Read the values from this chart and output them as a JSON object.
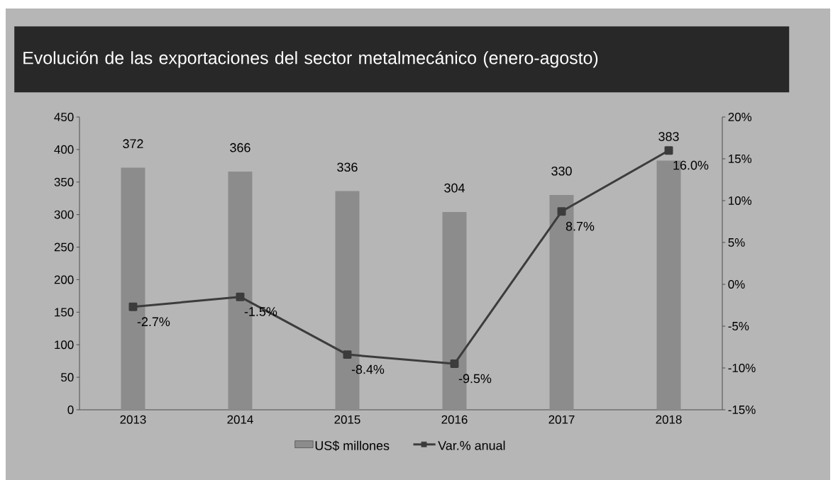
{
  "chart_data": {
    "type": "bar",
    "title": "Evolución de las exportaciones del sector metalmecánico (enero-agosto)",
    "categories": [
      "2013",
      "2014",
      "2015",
      "2016",
      "2017",
      "2018"
    ],
    "series": [
      {
        "name": "US$ millones",
        "color": "#8c8c8c",
        "values": [
          372,
          366,
          336,
          304,
          330,
          383
        ],
        "value_labels": [
          "372",
          "366",
          "336",
          "304",
          "330",
          "383"
        ]
      },
      {
        "name": "Var.% anual",
        "type": "line",
        "axis": "y2",
        "color": "#3c3c3c",
        "values": [
          -2.7,
          -1.5,
          -8.4,
          -9.5,
          8.7,
          16.0
        ],
        "value_labels": [
          "-2.7%",
          "-1.5%",
          "-8.4%",
          "-9.5%",
          "8.7%",
          "16.0%"
        ]
      }
    ],
    "ylim": [
      0,
      450
    ],
    "yticks": [
      0,
      50,
      100,
      150,
      200,
      250,
      300,
      350,
      400,
      450
    ],
    "y2lim": [
      -15,
      20
    ],
    "y2ticks": [
      {
        "value": -15,
        "label": "-15%"
      },
      {
        "value": -10,
        "label": "-10%"
      },
      {
        "value": -5,
        "label": "-5%"
      },
      {
        "value": 0,
        "label": "0%"
      },
      {
        "value": 5,
        "label": "5%"
      },
      {
        "value": 10,
        "label": "10%"
      },
      {
        "value": 15,
        "label": "15%"
      },
      {
        "value": 20,
        "label": "20%"
      }
    ],
    "marker": "square",
    "legend": "bottom",
    "grid": false
  }
}
